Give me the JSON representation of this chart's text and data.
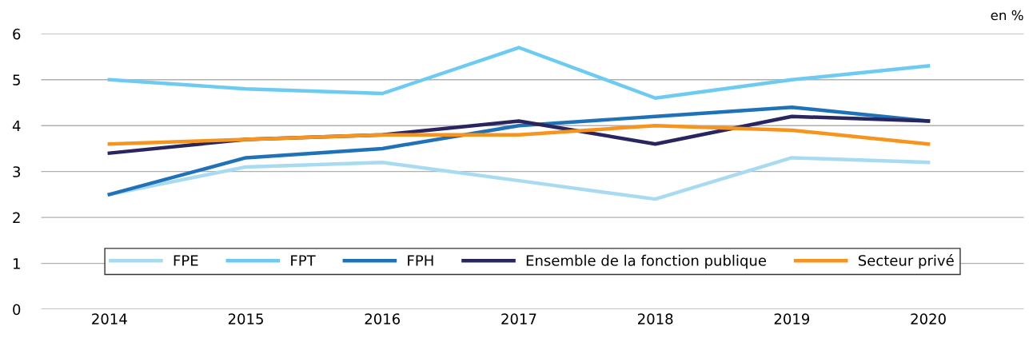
{
  "chart_data": {
    "type": "line",
    "categories": [
      "2014",
      "2015",
      "2016",
      "2017",
      "2018",
      "2019",
      "2020"
    ],
    "series": [
      {
        "name": "FPE",
        "color": "#a8daf2",
        "values": [
          2.5,
          3.1,
          3.2,
          2.8,
          2.4,
          3.3,
          3.2
        ]
      },
      {
        "name": "FPT",
        "color": "#6dcbf1",
        "values": [
          5.0,
          4.8,
          4.7,
          5.7,
          4.6,
          5.0,
          5.3
        ]
      },
      {
        "name": "FPH",
        "color": "#2072b8",
        "values": [
          2.5,
          3.3,
          3.5,
          4.0,
          4.2,
          4.4,
          4.1
        ]
      },
      {
        "name": "Ensemble de la fonction publique",
        "color": "#29255f",
        "values": [
          3.4,
          3.7,
          3.8,
          4.1,
          3.6,
          4.2,
          4.1
        ]
      },
      {
        "name": "Secteur privé",
        "color": "#f7941d",
        "values": [
          3.6,
          3.7,
          3.8,
          3.8,
          4.0,
          3.9,
          3.6
        ]
      }
    ],
    "ylim": [
      0,
      6
    ],
    "yticks": [
      0,
      1,
      2,
      3,
      4,
      5,
      6
    ],
    "grid": "y",
    "legend": "bottom",
    "marker": "none",
    "line_style": "solid",
    "annotations": [
      "en %"
    ]
  }
}
